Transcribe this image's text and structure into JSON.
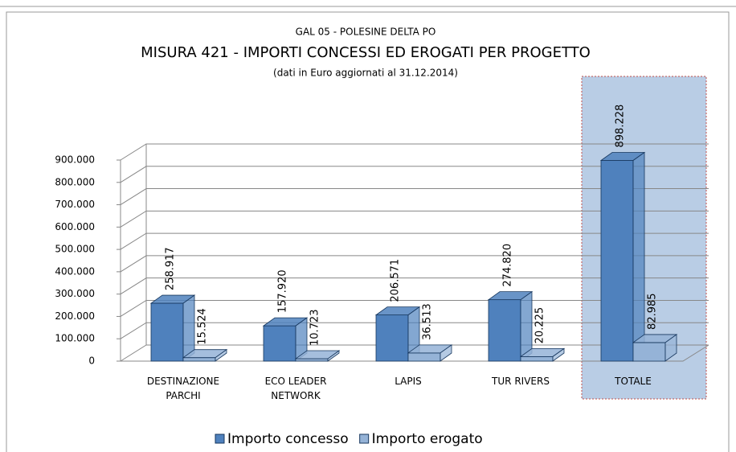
{
  "chart_data": {
    "type": "bar",
    "title": "GAL 05 - POLESINE DELTA PO",
    "subtitle": "MISURA 421  -  IMPORTI CONCESSI ED EROGATI PER PROGETTO",
    "note": "(dati in Euro aggiornati al 31.12.2014)",
    "categories": [
      "DESTINAZIONE PARCHI",
      "ECO LEADER NETWORK",
      "LAPIS",
      "TUR RIVERS",
      "TOTALE"
    ],
    "series": [
      {
        "name": "Importo concesso",
        "color": "#4f81bd",
        "values": [
          258917,
          157920,
          206571,
          274820,
          898228
        ],
        "value_labels": [
          "258.917",
          "157.920",
          "206.571",
          "274.820",
          "898.228"
        ]
      },
      {
        "name": "Importo erogato",
        "color": "#95b3d7",
        "values": [
          15524,
          10723,
          36513,
          20225,
          82985
        ],
        "value_labels": [
          "15.524",
          "10.723",
          "36.513",
          "20.225",
          "82.985"
        ]
      }
    ],
    "ylim": [
      0,
      900000
    ],
    "yticks": [
      0,
      {
        "value": 100000,
        "label": "100.000"
      },
      {
        "value": 200000,
        "label": "200.000"
      },
      {
        "value": 300000,
        "label": "300.000"
      },
      {
        "value": 400000,
        "label": "400.000"
      },
      {
        "value": 500000,
        "label": "500.000"
      },
      {
        "value": 600000,
        "label": "600.000"
      },
      {
        "value": 700000,
        "label": "700.000"
      },
      {
        "value": 800000,
        "label": "800.000"
      },
      {
        "value": 900000,
        "label": "900.000"
      }
    ],
    "grid": true,
    "legend": "bottom"
  }
}
